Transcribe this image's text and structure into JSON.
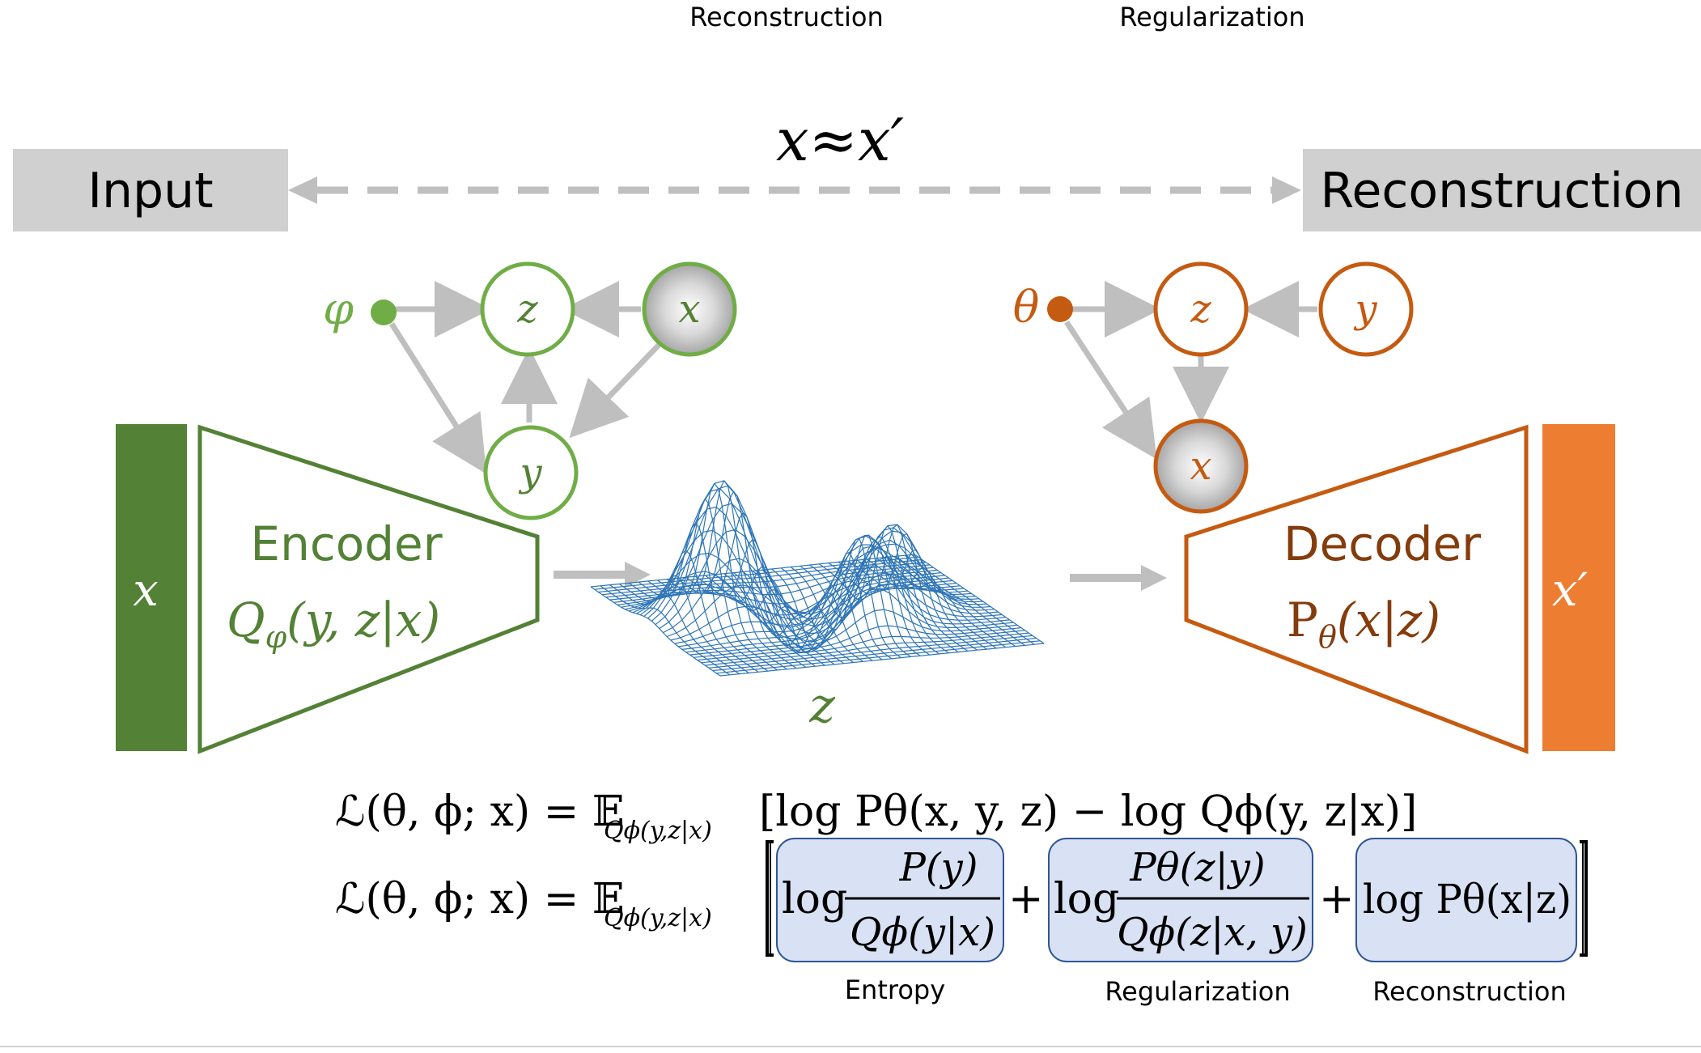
{
  "top_labels": {
    "reconstruction": "Reconstruction",
    "regularization": "Regularization"
  },
  "io": {
    "input_label": "Input",
    "output_label": "Reconstruction",
    "approx": "x≈x′"
  },
  "encoder": {
    "title": "Encoder",
    "formula_base": "Q",
    "formula_sub": "φ",
    "formula_args": "(y, z|x)",
    "bar_label": "x",
    "graph": {
      "param": "φ",
      "z": "z",
      "x": "x",
      "y": "y"
    }
  },
  "latent": {
    "label": "z"
  },
  "decoder": {
    "title": "Decoder",
    "formula_base": "P",
    "formula_sub": "θ",
    "formula_args": "(x|z)",
    "bar_label": "x′",
    "graph": {
      "param": "θ",
      "z": "z",
      "y": "y",
      "x": "x"
    }
  },
  "equations": {
    "line1_lhs": "ℒ(θ, ϕ; x) = 𝔼",
    "expect_sub": "Qϕ(y,z|x)",
    "line1_body": "[log Pθ(x, y, z) − log Qϕ(y, z|x)]",
    "line2_lhs": "ℒ(θ, ϕ; x) = 𝔼",
    "term_entropy": {
      "prefix": "log",
      "num": "P(y)",
      "den": "Qϕ(y|x)",
      "caption": "Entropy"
    },
    "term_regularization": {
      "prefix": "log",
      "num": "Pθ(z|y)",
      "den": "Qϕ(z|x, y)",
      "caption": "Regularization"
    },
    "term_reconstruction": {
      "body": "log Pθ(x|z)",
      "caption": "Reconstruction"
    },
    "plus": "+"
  },
  "colors": {
    "green_dark": "#538135",
    "green_light": "#70ad47",
    "orange": "#c55a11",
    "orange_light": "#ed7d31",
    "gray_arrow": "#bfbfbf",
    "gray_box": "#d0d0d0",
    "mesh_blue": "#2e75b6",
    "term_fill": "#d9e1f4",
    "term_stroke": "#2f5597"
  }
}
